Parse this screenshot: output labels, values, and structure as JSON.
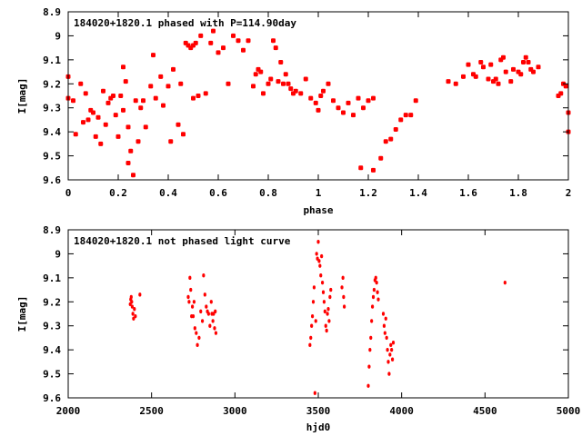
{
  "chart_data": [
    {
      "type": "scatter",
      "title": "184020+1820.1 phased with P=114.90day",
      "xlabel": "phase",
      "ylabel": "I[mag]",
      "xlim": [
        0,
        2
      ],
      "ylim": [
        9.6,
        8.9
      ],
      "y_inverted": true,
      "x_ticks": [
        "0",
        "0.2",
        "0.4",
        "0.6",
        "0.8",
        "1",
        "1.2",
        "1.4",
        "1.6",
        "1.8",
        "2"
      ],
      "y_ticks": [
        "8.9",
        "9",
        "9.1",
        "9.2",
        "9.3",
        "9.4",
        "9.5",
        "9.6"
      ],
      "marker_color": "#ff0000",
      "points": [
        [
          0.0,
          9.26
        ],
        [
          0.0,
          9.17
        ],
        [
          0.02,
          9.27
        ],
        [
          0.03,
          9.41
        ],
        [
          0.05,
          9.2
        ],
        [
          0.06,
          9.36
        ],
        [
          0.07,
          9.24
        ],
        [
          0.08,
          9.35
        ],
        [
          0.09,
          9.31
        ],
        [
          0.1,
          9.32
        ],
        [
          0.11,
          9.42
        ],
        [
          0.12,
          9.34
        ],
        [
          0.13,
          9.45
        ],
        [
          0.14,
          9.23
        ],
        [
          0.15,
          9.37
        ],
        [
          0.16,
          9.28
        ],
        [
          0.17,
          9.26
        ],
        [
          0.18,
          9.25
        ],
        [
          0.19,
          9.33
        ],
        [
          0.2,
          9.42
        ],
        [
          0.21,
          9.25
        ],
        [
          0.22,
          9.31
        ],
        [
          0.22,
          9.13
        ],
        [
          0.23,
          9.19
        ],
        [
          0.24,
          9.38
        ],
        [
          0.24,
          9.53
        ],
        [
          0.25,
          9.48
        ],
        [
          0.26,
          9.58
        ],
        [
          0.27,
          9.27
        ],
        [
          0.28,
          9.44
        ],
        [
          0.29,
          9.3
        ],
        [
          0.3,
          9.27
        ],
        [
          0.31,
          9.38
        ],
        [
          0.33,
          9.21
        ],
        [
          0.34,
          9.08
        ],
        [
          0.35,
          9.26
        ],
        [
          0.37,
          9.17
        ],
        [
          0.38,
          9.29
        ],
        [
          0.4,
          9.21
        ],
        [
          0.41,
          9.44
        ],
        [
          0.42,
          9.14
        ],
        [
          0.44,
          9.37
        ],
        [
          0.45,
          9.2
        ],
        [
          0.46,
          9.41
        ],
        [
          0.47,
          9.03
        ],
        [
          0.48,
          9.04
        ],
        [
          0.49,
          9.05
        ],
        [
          0.5,
          9.26
        ],
        [
          0.5,
          9.04
        ],
        [
          0.51,
          9.03
        ],
        [
          0.52,
          9.25
        ],
        [
          0.53,
          9.0
        ],
        [
          0.55,
          9.24
        ],
        [
          0.57,
          9.03
        ],
        [
          0.58,
          8.98
        ],
        [
          0.6,
          9.07
        ],
        [
          0.62,
          9.05
        ],
        [
          0.64,
          9.2
        ],
        [
          0.66,
          9.0
        ],
        [
          0.68,
          9.02
        ],
        [
          0.7,
          9.06
        ],
        [
          0.72,
          9.02
        ],
        [
          0.74,
          9.21
        ],
        [
          0.75,
          9.16
        ],
        [
          0.76,
          9.14
        ],
        [
          0.77,
          9.15
        ],
        [
          0.78,
          9.24
        ],
        [
          0.8,
          9.2
        ],
        [
          0.81,
          9.18
        ],
        [
          0.82,
          9.02
        ],
        [
          0.83,
          9.05
        ],
        [
          0.84,
          9.19
        ],
        [
          0.85,
          9.11
        ],
        [
          0.86,
          9.2
        ],
        [
          0.87,
          9.16
        ],
        [
          0.88,
          9.2
        ],
        [
          0.89,
          9.22
        ],
        [
          0.9,
          9.24
        ],
        [
          0.91,
          9.23
        ],
        [
          0.93,
          9.24
        ],
        [
          0.95,
          9.18
        ],
        [
          0.97,
          9.26
        ],
        [
          0.99,
          9.28
        ],
        [
          1.0,
          9.31
        ],
        [
          1.01,
          9.25
        ],
        [
          1.02,
          9.23
        ],
        [
          1.04,
          9.2
        ],
        [
          1.06,
          9.27
        ],
        [
          1.08,
          9.3
        ],
        [
          1.1,
          9.32
        ],
        [
          1.12,
          9.28
        ],
        [
          1.14,
          9.33
        ],
        [
          1.16,
          9.26
        ],
        [
          1.18,
          9.3
        ],
        [
          1.2,
          9.27
        ],
        [
          1.22,
          9.26
        ],
        [
          1.17,
          9.55
        ],
        [
          1.22,
          9.56
        ],
        [
          1.25,
          9.51
        ],
        [
          1.27,
          9.44
        ],
        [
          1.29,
          9.43
        ],
        [
          1.31,
          9.39
        ],
        [
          1.33,
          9.35
        ],
        [
          1.35,
          9.33
        ],
        [
          1.37,
          9.33
        ],
        [
          1.39,
          9.27
        ],
        [
          1.52,
          9.19
        ],
        [
          1.55,
          9.2
        ],
        [
          1.58,
          9.17
        ],
        [
          1.6,
          9.12
        ],
        [
          1.62,
          9.16
        ],
        [
          1.63,
          9.17
        ],
        [
          1.65,
          9.11
        ],
        [
          1.66,
          9.13
        ],
        [
          1.68,
          9.18
        ],
        [
          1.69,
          9.12
        ],
        [
          1.7,
          9.19
        ],
        [
          1.71,
          9.18
        ],
        [
          1.72,
          9.2
        ],
        [
          1.73,
          9.1
        ],
        [
          1.74,
          9.09
        ],
        [
          1.75,
          9.15
        ],
        [
          1.77,
          9.19
        ],
        [
          1.78,
          9.14
        ],
        [
          1.8,
          9.15
        ],
        [
          1.81,
          9.16
        ],
        [
          1.82,
          9.11
        ],
        [
          1.83,
          9.09
        ],
        [
          1.84,
          9.11
        ],
        [
          1.85,
          9.14
        ],
        [
          1.86,
          9.15
        ],
        [
          1.88,
          9.13
        ],
        [
          1.96,
          9.25
        ],
        [
          1.97,
          9.24
        ],
        [
          1.98,
          9.2
        ],
        [
          1.99,
          9.21
        ],
        [
          2.0,
          9.32
        ],
        [
          2.0,
          9.4
        ]
      ]
    },
    {
      "type": "scatter",
      "title": "184020+1820.1 not phased light curve",
      "xlabel": "hjd0",
      "ylabel": "I[mag]",
      "xlim": [
        2000,
        5000
      ],
      "ylim": [
        9.6,
        8.9
      ],
      "y_inverted": true,
      "x_ticks": [
        "2000",
        "2500",
        "3000",
        "3500",
        "4000",
        "4500",
        "5000"
      ],
      "y_ticks": [
        "8.9",
        "9",
        "9.1",
        "9.2",
        "9.3",
        "9.4",
        "9.5",
        "9.6"
      ],
      "marker_color": "#ff0000",
      "points": [
        [
          2372,
          9.21
        ],
        [
          2375,
          9.19
        ],
        [
          2378,
          9.18
        ],
        [
          2381,
          9.2
        ],
        [
          2384,
          9.22
        ],
        [
          2388,
          9.25
        ],
        [
          2392,
          9.27
        ],
        [
          2397,
          9.23
        ],
        [
          2403,
          9.26
        ],
        [
          2430,
          9.17
        ],
        [
          2720,
          9.18
        ],
        [
          2725,
          9.2
        ],
        [
          2730,
          9.1
        ],
        [
          2735,
          9.15
        ],
        [
          2740,
          9.26
        ],
        [
          2745,
          9.22
        ],
        [
          2750,
          9.26
        ],
        [
          2755,
          9.2
        ],
        [
          2760,
          9.31
        ],
        [
          2768,
          9.33
        ],
        [
          2775,
          9.38
        ],
        [
          2785,
          9.35
        ],
        [
          2795,
          9.24
        ],
        [
          2805,
          9.28
        ],
        [
          2812,
          9.09
        ],
        [
          2820,
          9.17
        ],
        [
          2828,
          9.22
        ],
        [
          2835,
          9.24
        ],
        [
          2842,
          9.25
        ],
        [
          2850,
          9.3
        ],
        [
          2858,
          9.2
        ],
        [
          2862,
          9.25
        ],
        [
          2868,
          9.28
        ],
        [
          2872,
          9.25
        ],
        [
          2878,
          9.31
        ],
        [
          2882,
          9.24
        ],
        [
          2886,
          9.33
        ],
        [
          3450,
          9.38
        ],
        [
          3455,
          9.35
        ],
        [
          3460,
          9.3
        ],
        [
          3465,
          9.26
        ],
        [
          3470,
          9.2
        ],
        [
          3475,
          9.14
        ],
        [
          3480,
          9.58
        ],
        [
          3485,
          9.28
        ],
        [
          3490,
          9.0
        ],
        [
          3495,
          9.02
        ],
        [
          3500,
          8.95
        ],
        [
          3505,
          9.03
        ],
        [
          3510,
          9.05
        ],
        [
          3515,
          9.09
        ],
        [
          3520,
          9.01
        ],
        [
          3525,
          9.12
        ],
        [
          3530,
          9.16
        ],
        [
          3535,
          9.2
        ],
        [
          3540,
          9.24
        ],
        [
          3545,
          9.3
        ],
        [
          3550,
          9.32
        ],
        [
          3555,
          9.25
        ],
        [
          3560,
          9.23
        ],
        [
          3565,
          9.28
        ],
        [
          3570,
          9.18
        ],
        [
          3575,
          9.15
        ],
        [
          3642,
          9.14
        ],
        [
          3648,
          9.1
        ],
        [
          3652,
          9.18
        ],
        [
          3656,
          9.22
        ],
        [
          3800,
          9.55
        ],
        [
          3805,
          9.47
        ],
        [
          3810,
          9.4
        ],
        [
          3815,
          9.35
        ],
        [
          3820,
          9.28
        ],
        [
          3825,
          9.22
        ],
        [
          3830,
          9.18
        ],
        [
          3835,
          9.15
        ],
        [
          3840,
          9.11
        ],
        [
          3845,
          9.1
        ],
        [
          3850,
          9.12
        ],
        [
          3855,
          9.16
        ],
        [
          3860,
          9.19
        ],
        [
          3890,
          9.25
        ],
        [
          3895,
          9.3
        ],
        [
          3900,
          9.33
        ],
        [
          3905,
          9.27
        ],
        [
          3910,
          9.35
        ],
        [
          3915,
          9.4
        ],
        [
          3920,
          9.45
        ],
        [
          3925,
          9.5
        ],
        [
          3930,
          9.42
        ],
        [
          3935,
          9.38
        ],
        [
          3940,
          9.4
        ],
        [
          3945,
          9.44
        ],
        [
          3950,
          9.37
        ],
        [
          4620,
          9.12
        ]
      ]
    }
  ]
}
